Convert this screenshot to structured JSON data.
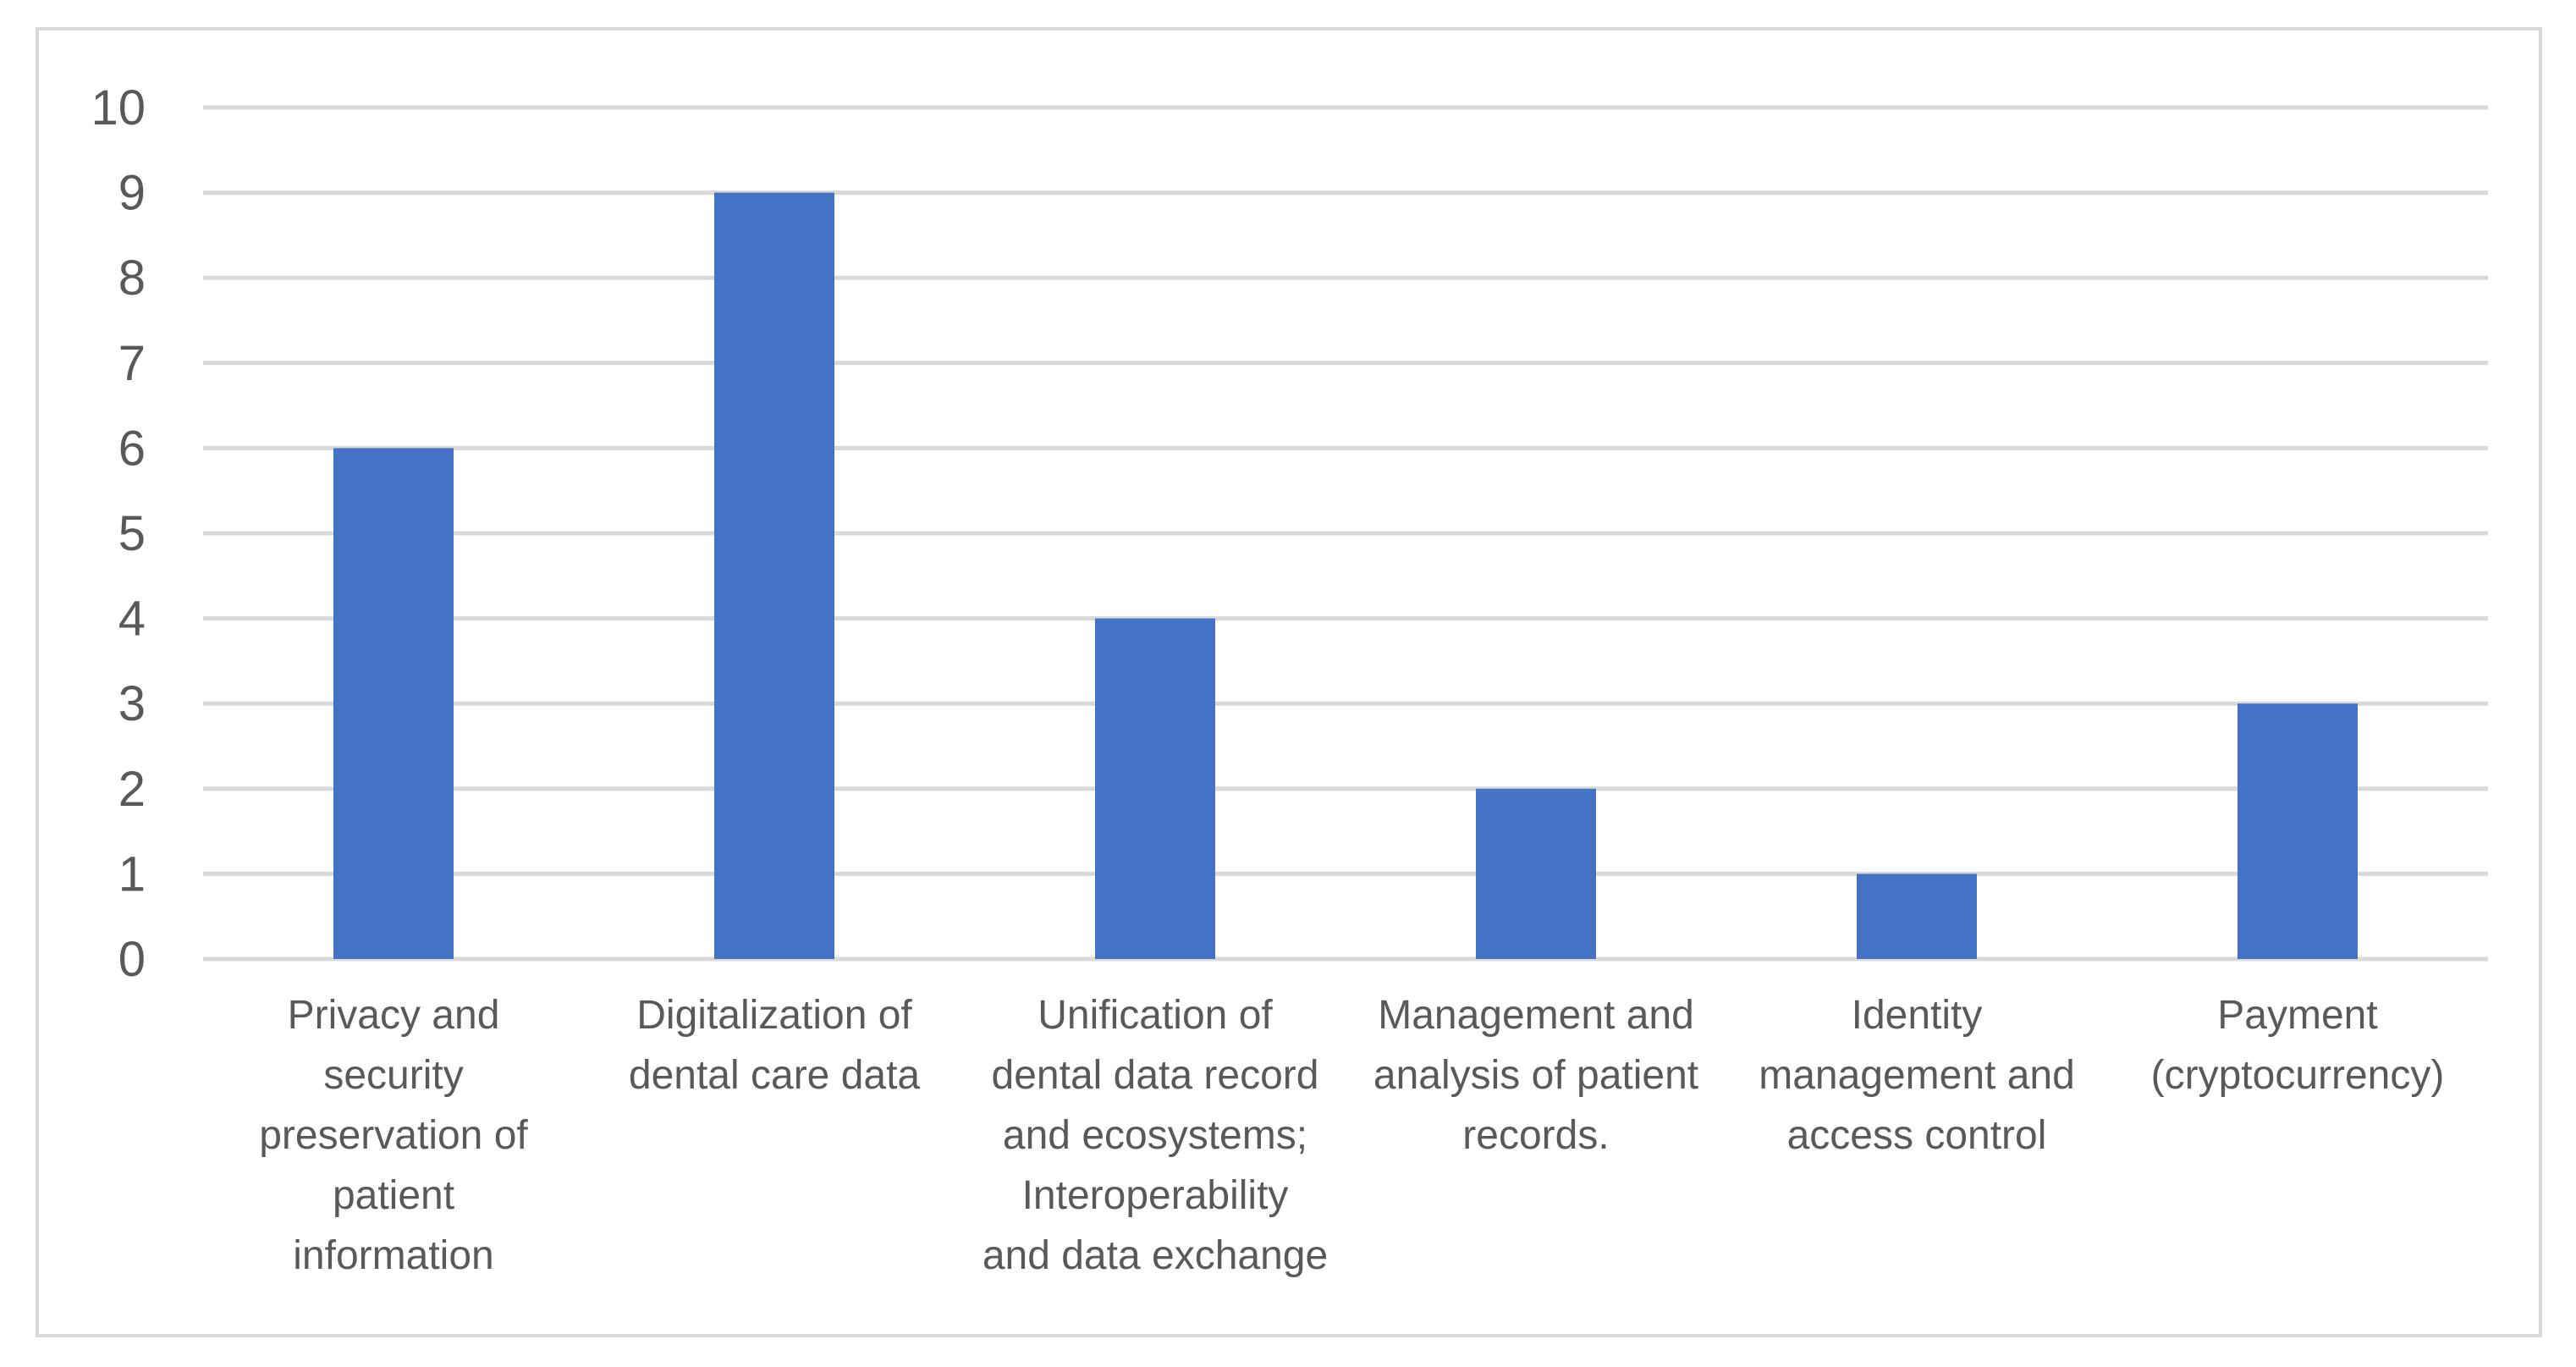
{
  "chart_data": {
    "type": "bar",
    "categories": [
      "Privacy and security preservation of patient information",
      "Digitalization of dental care data",
      "Unification of dental data record and ecosystems; Interoperability and data exchange",
      "Management and analysis of patient records.",
      "Identity management and access control",
      "Payment (cryptocurrency)"
    ],
    "category_label_lines": [
      [
        "Privacy and",
        "security",
        "preservation of",
        "patient",
        "information"
      ],
      [
        "Digitalization of",
        "dental care data"
      ],
      [
        "Unification of",
        "dental data record",
        "and ecosystems;",
        "Interoperability",
        "and data exchange"
      ],
      [
        "Management and",
        "analysis of patient",
        "records."
      ],
      [
        "Identity",
        "management and",
        "access control"
      ],
      [
        "Payment",
        "(cryptocurrency)"
      ]
    ],
    "values": [
      6,
      9,
      4,
      2,
      1,
      3
    ],
    "y_ticks": [
      "0",
      "1",
      "2",
      "3",
      "4",
      "5",
      "6",
      "7",
      "8",
      "9",
      "10"
    ],
    "ylim": [
      0,
      10
    ],
    "grid": true,
    "bar_color": "#4472c4",
    "grid_color": "#d9d9d9",
    "text_color": "#595959"
  }
}
